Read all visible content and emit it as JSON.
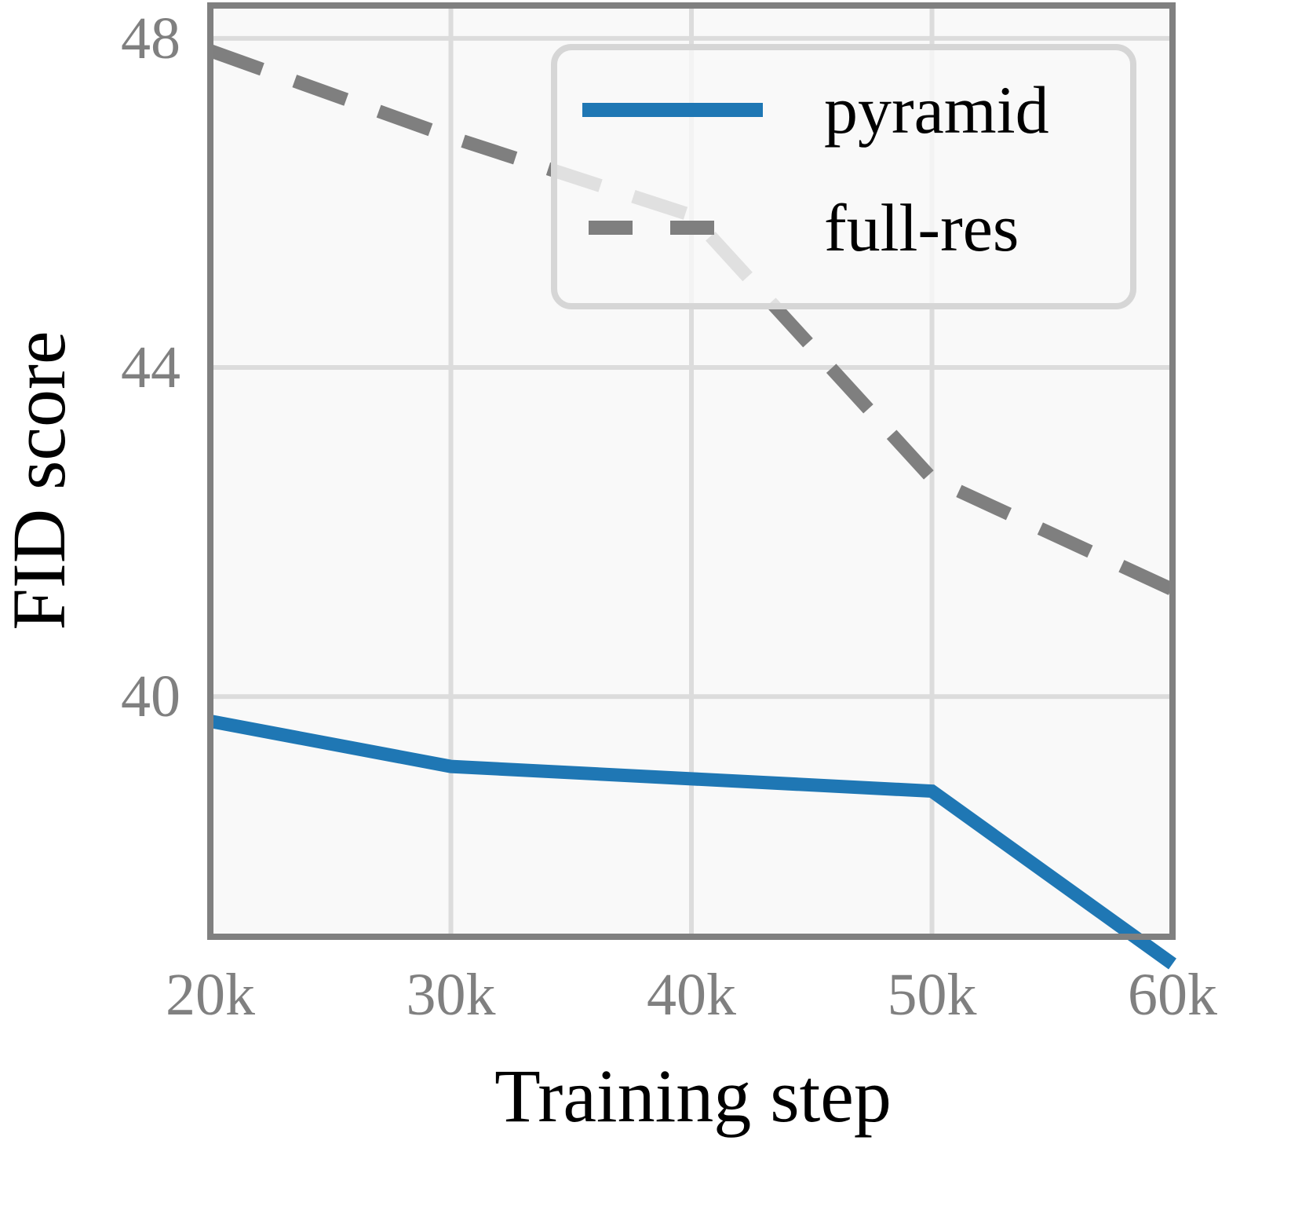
{
  "chart_data": {
    "type": "line",
    "title": "",
    "xlabel": "Training step",
    "ylabel": "FID score",
    "x": [
      20,
      30,
      40,
      50,
      60
    ],
    "x_unit": "thousand steps",
    "xticks": [
      20,
      30,
      40,
      50,
      60
    ],
    "xtick_labels": [
      "20k",
      "30k",
      "40k",
      "50k",
      "60k"
    ],
    "yticks": [
      40,
      44,
      48
    ],
    "ytick_labels": [
      "40",
      "44",
      "48"
    ],
    "xlim": [
      20,
      60
    ],
    "ylim": [
      37.08,
      48.4
    ],
    "grid": true,
    "legend_position": "top-right",
    "series": [
      {
        "name": "pyramid",
        "values": [
          39.7,
          39.15,
          39.0,
          38.85,
          36.75
        ],
        "color": "#1f77b4",
        "style": "solid"
      },
      {
        "name": "full-res",
        "values": [
          47.85,
          46.8,
          45.85,
          42.65,
          41.3
        ],
        "color": "#7f7f7f",
        "style": "dashed"
      }
    ],
    "colors": {
      "plot_background": "#f9f9f9",
      "frame": "#808080",
      "grid": "#dcdcdc"
    }
  }
}
